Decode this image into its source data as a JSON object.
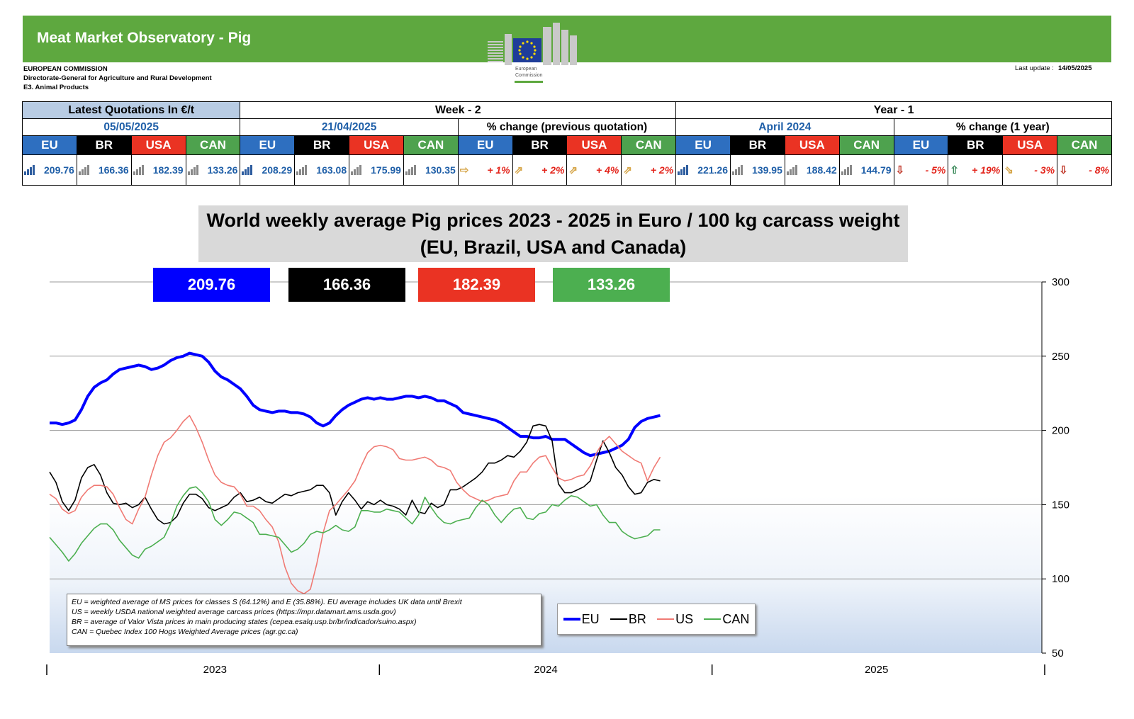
{
  "header": {
    "title": "Meat Market Observatory - Pig",
    "org_lines": [
      "EUROPEAN COMMISSION",
      "Directorate-General for Agriculture and Rural Development",
      "E3. Animal Products"
    ],
    "logo_text": "European Commission",
    "last_update_label": "Last update :",
    "last_update_value": "14/05/2025"
  },
  "quotations": {
    "latest_label": "Latest Quotations In €/t",
    "week2_label": "Week - 2",
    "year1_label": "Year - 1",
    "latest_date": "05/05/2025",
    "week2_date": "21/04/2025",
    "pct_prev_label": "% change (previous quotation)",
    "year1_date": "April 2024",
    "pct_year_label": "% change (1 year)",
    "regions": [
      "EU",
      "BR",
      "USA",
      "CAN"
    ],
    "latest_values": [
      "209.76",
      "166.36",
      "182.39",
      "133.26"
    ],
    "week2_values": [
      "208.29",
      "163.08",
      "175.99",
      "130.35"
    ],
    "pct_prev": [
      "+ 1%",
      "+ 2%",
      "+ 4%",
      "+ 2%"
    ],
    "year1_values": [
      "221.26",
      "139.95",
      "188.42",
      "144.79"
    ],
    "pct_year": [
      "- 5%",
      "+ 19%",
      "- 3%",
      "- 8%"
    ]
  },
  "colors": {
    "eu": "#0000ff",
    "br": "#000000",
    "usa": "#ea3323",
    "can": "#4caf50",
    "banner": "#5ea83f"
  },
  "chart_data": {
    "type": "line",
    "title": "World weekly average Pig prices 2023 - 2025  in Euro / 100 kg carcass weight",
    "subtitle": "(EU, Brazil, USA and Canada)",
    "current_values": [
      "209.76",
      "166.36",
      "182.39",
      "133.26"
    ],
    "x_tick_labels": [
      "2023",
      "2024",
      "2025"
    ],
    "y_ticks": [
      50,
      100,
      150,
      200,
      250,
      300
    ],
    "ylim": [
      50,
      300
    ],
    "weeks_per_year": 52,
    "grid": true,
    "legend_position": "bottom-center",
    "series": [
      {
        "name": "EU",
        "key": "eu",
        "values": [
          205,
          205,
          204,
          205,
          207,
          214,
          223,
          229,
          232,
          234,
          238,
          241,
          242,
          243,
          244,
          243,
          241,
          242,
          244,
          247,
          249,
          250,
          252,
          251,
          250,
          246,
          240,
          236,
          234,
          231,
          228,
          223,
          217,
          214,
          213,
          212,
          213,
          213,
          212,
          212,
          211,
          209,
          205,
          203,
          205,
          210,
          214,
          217,
          219,
          221,
          222,
          221,
          222,
          221,
          221,
          222,
          223,
          223,
          222,
          223,
          222,
          220,
          220,
          218,
          216,
          212,
          211,
          210,
          209,
          208,
          207,
          205,
          202,
          199,
          196,
          196,
          195,
          195,
          196,
          194,
          194,
          194,
          191,
          188,
          185,
          183,
          184,
          185,
          186,
          188,
          190,
          194,
          202,
          206,
          208,
          209,
          210
        ]
      },
      {
        "name": "BR",
        "key": "br",
        "values": [
          172,
          165,
          152,
          146,
          153,
          168,
          175,
          177,
          170,
          158,
          151,
          150,
          151,
          148,
          150,
          155,
          147,
          140,
          137,
          138,
          142,
          151,
          157,
          157,
          154,
          148,
          146,
          148,
          150,
          155,
          158,
          152,
          153,
          155,
          152,
          151,
          154,
          157,
          156,
          158,
          159,
          160,
          163,
          163,
          158,
          143,
          152,
          158,
          153,
          147,
          152,
          150,
          153,
          150,
          149,
          147,
          143,
          153,
          145,
          144,
          151,
          148,
          150,
          160,
          160,
          162,
          165,
          168,
          172,
          178,
          178,
          180,
          183,
          182,
          186,
          192,
          203,
          204,
          203,
          193,
          164,
          158,
          158,
          160,
          162,
          166,
          180,
          193,
          185,
          175,
          170,
          162,
          157,
          158,
          165,
          167,
          166
        ]
      },
      {
        "name": "US",
        "key": "usa",
        "values": [
          157,
          154,
          147,
          144,
          146,
          155,
          160,
          163,
          163,
          162,
          157,
          148,
          140,
          137,
          147,
          155,
          170,
          183,
          192,
          195,
          200,
          206,
          210,
          202,
          192,
          180,
          170,
          165,
          163,
          162,
          157,
          149,
          149,
          146,
          140,
          135,
          125,
          108,
          97,
          92,
          90,
          93,
          110,
          131,
          146,
          150,
          155,
          160,
          166,
          176,
          185,
          189,
          190,
          189,
          187,
          181,
          180,
          180,
          181,
          182,
          180,
          176,
          175,
          173,
          165,
          160,
          156,
          154,
          152,
          153,
          155,
          156,
          157,
          166,
          172,
          172,
          178,
          182,
          183,
          175,
          168,
          166,
          167,
          169,
          170,
          176,
          185,
          192,
          196,
          191,
          186,
          183,
          180,
          178,
          166,
          175,
          182
        ]
      },
      {
        "name": "CAN",
        "key": "can",
        "values": [
          128,
          123,
          118,
          112,
          117,
          124,
          129,
          134,
          137,
          137,
          133,
          126,
          121,
          116,
          114,
          120,
          122,
          125,
          128,
          137,
          149,
          156,
          161,
          162,
          158,
          152,
          140,
          136,
          140,
          145,
          144,
          141,
          138,
          130,
          130,
          129,
          128,
          123,
          118,
          120,
          124,
          130,
          132,
          131,
          133,
          136,
          133,
          132,
          135,
          146,
          146,
          145,
          145,
          147,
          146,
          145,
          141,
          137,
          143,
          155,
          148,
          142,
          138,
          137,
          139,
          140,
          141,
          148,
          153,
          150,
          143,
          138,
          143,
          147,
          148,
          141,
          140,
          144,
          145,
          150,
          149,
          153,
          156,
          155,
          152,
          149,
          150,
          143,
          138,
          138,
          132,
          129,
          127,
          128,
          129,
          133,
          133
        ]
      }
    ]
  },
  "notes": [
    "EU    = weighted average of MS prices for classes S (64.12%) and E (35.88%). EU average includes UK data  until Brexit",
    "US    = weekly USDA national weighted average carcass prices (https://mpr.datamart.ams.usda.gov)",
    "BR    = average of Valor Vista prices in main producing states (cepea.esalq.usp.br/br/indicador/suino.aspx)",
    "CAN = Quebec Index 100 Hogs Weighted Average prices (agr.gc.ca)"
  ]
}
